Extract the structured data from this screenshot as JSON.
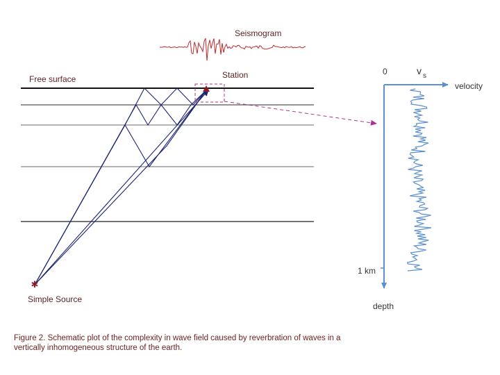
{
  "seismogram_label": "Seismogram",
  "free_surface_label": "Free surface",
  "station_label": "Station",
  "source_label": "Simple Source",
  "profile": {
    "origin_label": "0",
    "vs_label": "v",
    "vs_subscript": "s",
    "velocity_label": "velocity",
    "depth_tick_label": "1 km",
    "depth_label": "depth"
  },
  "caption": {
    "lines": [
      "Figure 2.  Schematic plot of the complexity in wave field caused by reverbration of  waves in a",
      "vertically inhomogeneous structure of the earth."
    ]
  }
}
